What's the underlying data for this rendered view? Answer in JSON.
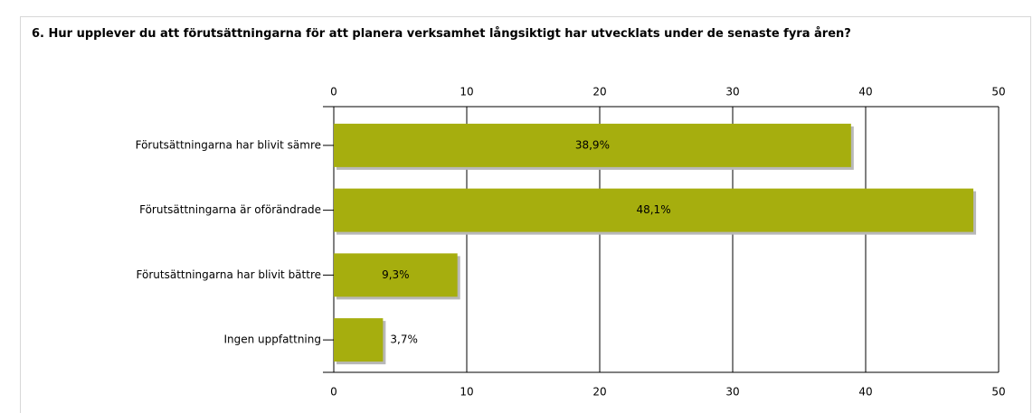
{
  "chart_data": {
    "type": "bar",
    "orientation": "horizontal",
    "title": "6. Hur upplever du att förutsättningarna för att planera verksamhet långsiktigt har utvecklats under de senaste fyra åren?",
    "categories": [
      "Förutsättningarna har blivit sämre",
      "Förutsättningarna är oförändrade",
      "Förutsättningarna har blivit bättre",
      "Ingen uppfattning"
    ],
    "values": [
      38.9,
      48.1,
      9.3,
      3.7
    ],
    "value_labels": [
      "38,9%",
      "48,1%",
      "9,3%",
      "3,7%"
    ],
    "color": "#a6ae0e",
    "xlim": [
      0,
      50
    ],
    "xticks": [
      0,
      10,
      20,
      30,
      40,
      50
    ],
    "grid": true
  }
}
